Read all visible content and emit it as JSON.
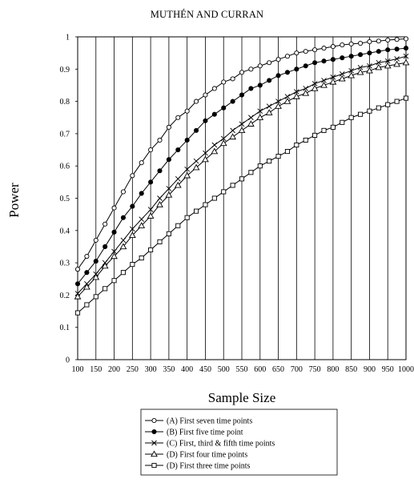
{
  "running_head": "MUTHÉN AND CURRAN",
  "chart_data": {
    "type": "line",
    "title": "",
    "xlabel": "Sample Size",
    "ylabel": "Power",
    "xlim": [
      100,
      1000
    ],
    "ylim": [
      0,
      1
    ],
    "x_ticks": [
      100,
      150,
      200,
      250,
      300,
      350,
      400,
      450,
      500,
      550,
      600,
      650,
      700,
      750,
      800,
      850,
      900,
      950,
      1000
    ],
    "x_tick_labels": [
      "100",
      "150",
      "200",
      "250",
      "300",
      "350",
      "400",
      "450",
      "500",
      "550",
      "600",
      "650",
      "700",
      "750",
      "800",
      "850",
      "900",
      "950",
      "1000"
    ],
    "y_ticks": [
      0,
      0.1,
      0.2,
      0.3,
      0.4,
      0.5,
      0.6,
      0.7,
      0.8,
      0.9,
      1
    ],
    "y_tick_labels": [
      "0",
      "0.1",
      "0.2",
      "0.3",
      "0.4",
      "0.5",
      "0.6",
      "0.7",
      "0.8",
      "0.9",
      "1"
    ],
    "grid": "vertical",
    "legend_position": "bottom",
    "x": [
      100,
      125,
      150,
      175,
      200,
      225,
      250,
      275,
      300,
      325,
      350,
      375,
      400,
      425,
      450,
      475,
      500,
      525,
      550,
      575,
      600,
      625,
      650,
      675,
      700,
      725,
      750,
      775,
      800,
      825,
      850,
      875,
      900,
      925,
      950,
      975,
      1000
    ],
    "series": [
      {
        "name": "(A) First seven time points",
        "marker": "open-circle",
        "values": [
          0.28,
          0.32,
          0.37,
          0.42,
          0.47,
          0.52,
          0.57,
          0.61,
          0.65,
          0.68,
          0.72,
          0.75,
          0.77,
          0.8,
          0.82,
          0.84,
          0.86,
          0.87,
          0.89,
          0.9,
          0.91,
          0.92,
          0.93,
          0.94,
          0.95,
          0.955,
          0.96,
          0.965,
          0.97,
          0.975,
          0.978,
          0.98,
          0.985,
          0.987,
          0.99,
          0.992,
          0.994
        ]
      },
      {
        "name": "(B) First five time point",
        "marker": "filled-circle",
        "values": [
          0.235,
          0.27,
          0.305,
          0.35,
          0.395,
          0.44,
          0.475,
          0.515,
          0.55,
          0.585,
          0.62,
          0.65,
          0.68,
          0.71,
          0.74,
          0.76,
          0.78,
          0.8,
          0.82,
          0.84,
          0.85,
          0.865,
          0.88,
          0.89,
          0.9,
          0.91,
          0.92,
          0.925,
          0.93,
          0.935,
          0.94,
          0.945,
          0.95,
          0.955,
          0.96,
          0.962,
          0.965
        ]
      },
      {
        "name": "(C) First, third & fifth time points",
        "marker": "x",
        "values": [
          0.205,
          0.235,
          0.265,
          0.3,
          0.335,
          0.37,
          0.405,
          0.435,
          0.465,
          0.5,
          0.53,
          0.56,
          0.59,
          0.615,
          0.64,
          0.665,
          0.685,
          0.71,
          0.73,
          0.75,
          0.77,
          0.785,
          0.8,
          0.815,
          0.83,
          0.84,
          0.855,
          0.865,
          0.875,
          0.885,
          0.895,
          0.905,
          0.91,
          0.92,
          0.925,
          0.932,
          0.94
        ]
      },
      {
        "name": "(D) First four time points",
        "marker": "open-triangle",
        "values": [
          0.195,
          0.225,
          0.255,
          0.29,
          0.32,
          0.35,
          0.385,
          0.415,
          0.445,
          0.48,
          0.51,
          0.54,
          0.57,
          0.595,
          0.62,
          0.645,
          0.67,
          0.69,
          0.71,
          0.73,
          0.75,
          0.765,
          0.785,
          0.8,
          0.815,
          0.825,
          0.84,
          0.85,
          0.86,
          0.87,
          0.88,
          0.89,
          0.895,
          0.905,
          0.91,
          0.915,
          0.92
        ]
      },
      {
        "name": "(D) First three time points",
        "marker": "open-square",
        "values": [
          0.145,
          0.17,
          0.195,
          0.22,
          0.245,
          0.27,
          0.295,
          0.315,
          0.34,
          0.365,
          0.39,
          0.415,
          0.44,
          0.46,
          0.48,
          0.5,
          0.52,
          0.54,
          0.56,
          0.58,
          0.6,
          0.615,
          0.63,
          0.645,
          0.665,
          0.68,
          0.695,
          0.71,
          0.72,
          0.735,
          0.75,
          0.76,
          0.77,
          0.78,
          0.79,
          0.8,
          0.81
        ]
      }
    ]
  }
}
